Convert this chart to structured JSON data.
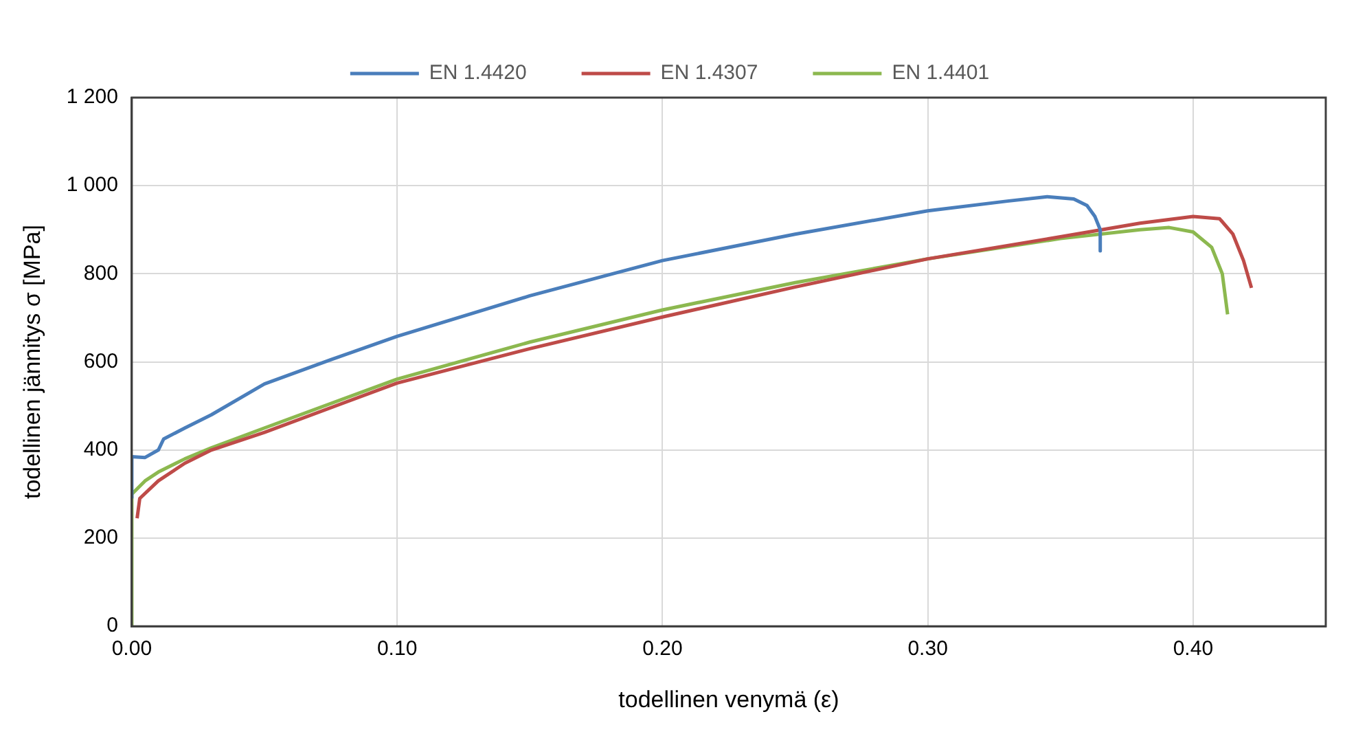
{
  "chart_data": {
    "type": "line",
    "xlabel": "todellinen venymä (ε)",
    "ylabel": "todellinen jännitys σ [MPa]",
    "xlim": [
      0,
      0.45
    ],
    "xticks": [
      {
        "value": 0,
        "label": "0.00"
      },
      {
        "value": 0.1,
        "label": "0.10"
      },
      {
        "value": 0.2,
        "label": "0.20"
      },
      {
        "value": 0.3,
        "label": "0.30"
      },
      {
        "value": 0.4,
        "label": "0.40"
      }
    ],
    "ylim": [
      0,
      1200
    ],
    "yticks": [
      0,
      200,
      400,
      600,
      800,
      {
        "value": 1000,
        "label": "1 000"
      },
      {
        "value": 1200,
        "label": "1 200"
      }
    ],
    "grid": true,
    "legend": "top",
    "marker": "none",
    "line_style": "solid",
    "series": [
      {
        "name": "EN 1.4420",
        "color": "#4a7ebb",
        "x": [
          0,
          0,
          0.005,
          0.01,
          0.012,
          0.02,
          0.03,
          0.05,
          0.075,
          0.1,
          0.15,
          0.2,
          0.25,
          0.3,
          0.33,
          0.345,
          0.355,
          0.36,
          0.363,
          0.365,
          0.365
        ],
        "values": [
          290,
          385,
          383,
          400,
          425,
          450,
          480,
          550,
          605,
          658,
          750,
          830,
          890,
          943,
          965,
          975,
          970,
          955,
          930,
          900,
          852
        ]
      },
      {
        "name": "EN 1.4307",
        "color": "#be4b48",
        "x": [
          0.002,
          0.003,
          0.01,
          0.02,
          0.03,
          0.05,
          0.1,
          0.15,
          0.2,
          0.25,
          0.3,
          0.35,
          0.38,
          0.4,
          0.41,
          0.415,
          0.419,
          0.422
        ],
        "values": [
          245,
          290,
          330,
          370,
          400,
          440,
          552,
          630,
          702,
          770,
          834,
          884,
          915,
          930,
          925,
          890,
          830,
          768
        ]
      },
      {
        "name": "EN 1.4401",
        "color": "#8cb84f",
        "x": [
          0,
          0,
          0.005,
          0.01,
          0.02,
          0.03,
          0.05,
          0.1,
          0.15,
          0.2,
          0.25,
          0.3,
          0.35,
          0.38,
          0.391,
          0.4,
          0.407,
          0.411,
          0.413
        ],
        "values": [
          0,
          300,
          330,
          350,
          380,
          405,
          450,
          561,
          645,
          718,
          780,
          834,
          880,
          900,
          905,
          895,
          860,
          800,
          708
        ]
      }
    ]
  }
}
